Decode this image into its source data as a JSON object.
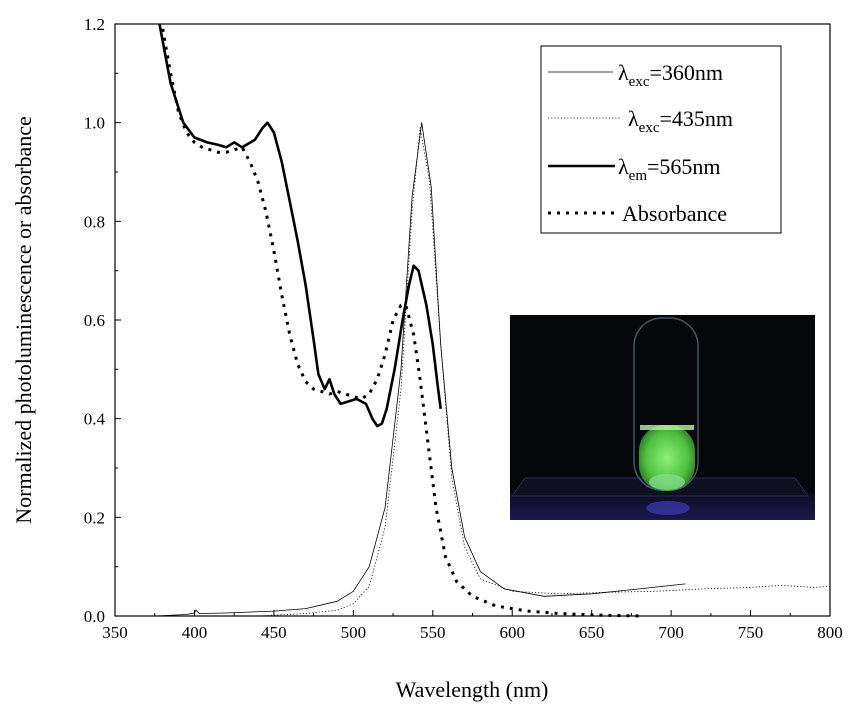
{
  "chart_data": {
    "type": "line",
    "xlabel": "Wavelength (nm)",
    "ylabel": "Normalized photoluminescence or absorbance",
    "xlim": [
      350,
      800
    ],
    "ylim": [
      0.0,
      1.2
    ],
    "x_ticks": [
      350,
      400,
      450,
      500,
      550,
      600,
      650,
      700,
      750,
      800
    ],
    "y_ticks": [
      "0.0",
      "0.2",
      "0.4",
      "0.6",
      "0.8",
      "1.0",
      "1.2"
    ],
    "legend": {
      "placement": "top-right",
      "entries": [
        {
          "main": "λ",
          "sub": "exc",
          "rest": "=360nm",
          "style": "thin-solid"
        },
        {
          "main": "λ",
          "sub": "exc",
          "rest": "=435nm",
          "style": "dotted"
        },
        {
          "main": "λ",
          "sub": "em",
          "rest": "=565nm",
          "style": "thick-solid"
        },
        {
          "main": "",
          "sub": "",
          "rest": "Absorbance",
          "style": "thick-dotted"
        }
      ]
    },
    "series": [
      {
        "style": "thin-solid",
        "points": [
          [
            375,
            0.0
          ],
          [
            395,
            0.003
          ],
          [
            400,
            0.006
          ],
          [
            401,
            0.012
          ],
          [
            403,
            0.005
          ],
          [
            420,
            0.006
          ],
          [
            450,
            0.01
          ],
          [
            470,
            0.015
          ],
          [
            490,
            0.03
          ],
          [
            500,
            0.05
          ],
          [
            510,
            0.1
          ],
          [
            520,
            0.22
          ],
          [
            530,
            0.5
          ],
          [
            537,
            0.85
          ],
          [
            543,
            1.0
          ],
          [
            549,
            0.87
          ],
          [
            555,
            0.55
          ],
          [
            562,
            0.3
          ],
          [
            570,
            0.16
          ],
          [
            580,
            0.09
          ],
          [
            595,
            0.055
          ],
          [
            620,
            0.04
          ],
          [
            650,
            0.045
          ],
          [
            680,
            0.055
          ],
          [
            709,
            0.065
          ]
        ]
      },
      {
        "style": "dotted",
        "points": [
          [
            440,
            0.0
          ],
          [
            470,
            0.005
          ],
          [
            490,
            0.012
          ],
          [
            500,
            0.025
          ],
          [
            510,
            0.06
          ],
          [
            520,
            0.18
          ],
          [
            530,
            0.46
          ],
          [
            537,
            0.82
          ],
          [
            542,
            0.99
          ],
          [
            548,
            0.88
          ],
          [
            555,
            0.55
          ],
          [
            562,
            0.28
          ],
          [
            570,
            0.14
          ],
          [
            580,
            0.075
          ],
          [
            600,
            0.05
          ],
          [
            630,
            0.045
          ],
          [
            660,
            0.048
          ],
          [
            690,
            0.05
          ],
          [
            720,
            0.055
          ],
          [
            750,
            0.058
          ],
          [
            770,
            0.062
          ],
          [
            780,
            0.06
          ],
          [
            790,
            0.058
          ],
          [
            800,
            0.06
          ]
        ]
      },
      {
        "style": "thick-solid",
        "points": [
          [
            378,
            1.2
          ],
          [
            385,
            1.08
          ],
          [
            393,
            1.0
          ],
          [
            400,
            0.97
          ],
          [
            408,
            0.96
          ],
          [
            415,
            0.955
          ],
          [
            420,
            0.95
          ],
          [
            425,
            0.96
          ],
          [
            430,
            0.95
          ],
          [
            438,
            0.965
          ],
          [
            443,
            0.99
          ],
          [
            446,
            1.0
          ],
          [
            450,
            0.98
          ],
          [
            455,
            0.92
          ],
          [
            460,
            0.84
          ],
          [
            465,
            0.76
          ],
          [
            470,
            0.67
          ],
          [
            475,
            0.56
          ],
          [
            478,
            0.49
          ],
          [
            482,
            0.46
          ],
          [
            485,
            0.48
          ],
          [
            488,
            0.45
          ],
          [
            492,
            0.43
          ],
          [
            497,
            0.435
          ],
          [
            502,
            0.44
          ],
          [
            508,
            0.43
          ],
          [
            512,
            0.4
          ],
          [
            515,
            0.385
          ],
          [
            518,
            0.39
          ],
          [
            521,
            0.42
          ],
          [
            526,
            0.5
          ],
          [
            531,
            0.6
          ],
          [
            535,
            0.67
          ],
          [
            538,
            0.71
          ],
          [
            541,
            0.7
          ],
          [
            546,
            0.63
          ],
          [
            550,
            0.55
          ],
          [
            553,
            0.47
          ],
          [
            555,
            0.42
          ]
        ]
      },
      {
        "style": "thick-dotted",
        "points": [
          [
            380,
            1.19
          ],
          [
            385,
            1.1
          ],
          [
            390,
            1.02
          ],
          [
            395,
            0.98
          ],
          [
            400,
            0.96
          ],
          [
            405,
            0.95
          ],
          [
            410,
            0.945
          ],
          [
            415,
            0.94
          ],
          [
            420,
            0.94
          ],
          [
            425,
            0.945
          ],
          [
            430,
            0.95
          ],
          [
            435,
            0.92
          ],
          [
            440,
            0.88
          ],
          [
            445,
            0.82
          ],
          [
            450,
            0.74
          ],
          [
            455,
            0.65
          ],
          [
            460,
            0.57
          ],
          [
            465,
            0.51
          ],
          [
            470,
            0.475
          ],
          [
            475,
            0.46
          ],
          [
            480,
            0.455
          ],
          [
            485,
            0.45
          ],
          [
            490,
            0.455
          ],
          [
            495,
            0.45
          ],
          [
            500,
            0.445
          ],
          [
            505,
            0.44
          ],
          [
            510,
            0.45
          ],
          [
            515,
            0.48
          ],
          [
            520,
            0.53
          ],
          [
            525,
            0.6
          ],
          [
            530,
            0.63
          ],
          [
            533,
            0.63
          ],
          [
            538,
            0.57
          ],
          [
            542,
            0.48
          ],
          [
            547,
            0.35
          ],
          [
            552,
            0.22
          ],
          [
            558,
            0.12
          ],
          [
            565,
            0.07
          ],
          [
            575,
            0.04
          ],
          [
            590,
            0.02
          ],
          [
            610,
            0.01
          ],
          [
            630,
            0.005
          ],
          [
            650,
            0.002
          ],
          [
            680,
            0.0
          ]
        ]
      }
    ]
  },
  "inset_photo": {
    "background": "#05070a",
    "glow_color": "#6fe05a",
    "tube_tint": "#9ab8c8",
    "floor_color": "#3a2f9a"
  }
}
